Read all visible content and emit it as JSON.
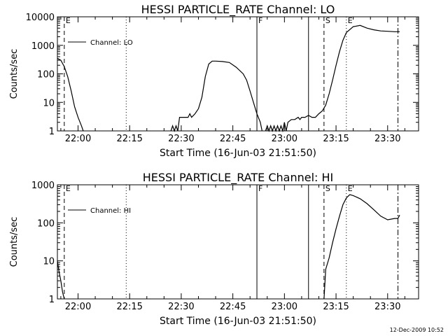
{
  "footer": {
    "stamp": "12-Dec-2009 10:52"
  },
  "chart_data": [
    {
      "type": "line",
      "title": "HESSI PARTICLE_RATE Channel: LO",
      "xlabel": "Start Time (16-Jun-03 21:51:50)",
      "ylabel": "Counts/sec",
      "yscale": "log",
      "xlim_minutes": [
        -6,
        99
      ],
      "ylim": [
        1,
        10000
      ],
      "x_ticks": [
        "22:00",
        "22:15",
        "22:30",
        "22:45",
        "23:00",
        "23:15",
        "23:30"
      ],
      "y_ticks": [
        "1",
        "10",
        "100",
        "1000",
        "10000"
      ],
      "legend": {
        "label": "Channel: LO",
        "position": "top-left"
      },
      "markers": [
        {
          "label": "E",
          "time_min": -4,
          "style": "dashed"
        },
        {
          "label": "",
          "time_min": 14,
          "style": "dotted"
        },
        {
          "label": "F",
          "time_min": 52,
          "style": "solid"
        },
        {
          "label": "",
          "time_min": 67,
          "style": "solid"
        },
        {
          "label": "S",
          "time_min": 71.5,
          "style": "dashed"
        },
        {
          "label": "E",
          "time_min": 78,
          "style": "dotted"
        },
        {
          "label": "",
          "time_min": 93,
          "style": "dashdot"
        }
      ],
      "series": [
        {
          "name": "Channel: LO",
          "segments": [
            [
              [
                -6,
                350
              ],
              [
                -5,
                300
              ],
              [
                -4,
                180
              ],
              [
                -3,
                80
              ],
              [
                -2,
                25
              ],
              [
                -1,
                7
              ],
              [
                0,
                3
              ],
              [
                1,
                1.5
              ],
              [
                1.5,
                1
              ]
            ],
            [
              [
                27,
                1
              ],
              [
                27.5,
                1.5
              ],
              [
                28,
                1
              ],
              [
                28.5,
                1.5
              ],
              [
                29,
                1
              ],
              [
                29.5,
                3
              ],
              [
                31,
                3
              ],
              [
                32,
                3
              ],
              [
                32.5,
                4
              ],
              [
                33,
                3
              ],
              [
                34,
                4
              ],
              [
                35,
                6
              ],
              [
                36,
                15
              ],
              [
                37,
                80
              ],
              [
                38,
                220
              ],
              [
                39,
                280
              ],
              [
                40,
                280
              ],
              [
                42,
                270
              ],
              [
                44,
                250
              ],
              [
                46,
                170
              ],
              [
                48,
                100
              ],
              [
                49,
                60
              ],
              [
                50,
                25
              ],
              [
                51,
                10
              ],
              [
                52,
                4
              ],
              [
                53,
                2
              ],
              [
                53.5,
                1
              ]
            ],
            [
              [
                54.5,
                1
              ],
              [
                55,
                1.5
              ],
              [
                55.5,
                1
              ],
              [
                56,
                1.5
              ],
              [
                56.5,
                1
              ],
              [
                57,
                1.5
              ],
              [
                57.5,
                1
              ],
              [
                58,
                1.5
              ],
              [
                58.5,
                1
              ],
              [
                59,
                1.5
              ],
              [
                59.5,
                1
              ],
              [
                60,
                2
              ],
              [
                60.5,
                1
              ],
              [
                61,
                2
              ],
              [
                62,
                2.5
              ],
              [
                63,
                2.5
              ],
              [
                64,
                3
              ],
              [
                64.5,
                2.5
              ],
              [
                65,
                3
              ],
              [
                66,
                3
              ],
              [
                67,
                3.5
              ],
              [
                68,
                3
              ],
              [
                69,
                3
              ],
              [
                70,
                4
              ],
              [
                71,
                5
              ],
              [
                72,
                8
              ],
              [
                73,
                20
              ],
              [
                74,
                60
              ],
              [
                75,
                200
              ],
              [
                76,
                600
              ],
              [
                77,
                1500
              ],
              [
                78,
                2800
              ],
              [
                80,
                4500
              ],
              [
                82,
                5000
              ],
              [
                84,
                4000
              ],
              [
                86,
                3500
              ],
              [
                88,
                3200
              ],
              [
                90,
                3100
              ],
              [
                92,
                3000
              ],
              [
                93,
                3000
              ],
              [
                93.5,
                3000
              ]
            ]
          ]
        }
      ]
    },
    {
      "type": "line",
      "title": "HESSI PARTICLE_RATE Channel: HI",
      "xlabel": "Start Time (16-Jun-03 21:51:50)",
      "ylabel": "Counts/sec",
      "yscale": "log",
      "xlim_minutes": [
        -6,
        99
      ],
      "ylim": [
        1,
        1000
      ],
      "x_ticks": [
        "22:00",
        "22:15",
        "22:30",
        "22:45",
        "23:00",
        "23:15",
        "23:30"
      ],
      "y_ticks": [
        "1",
        "10",
        "100",
        "1000"
      ],
      "legend": {
        "label": "Channel: HI",
        "position": "top-left"
      },
      "markers": [
        {
          "label": "E",
          "time_min": -4,
          "style": "dashed"
        },
        {
          "label": "",
          "time_min": 14,
          "style": "dotted"
        },
        {
          "label": "F",
          "time_min": 52,
          "style": "solid"
        },
        {
          "label": "",
          "time_min": 67,
          "style": "solid"
        },
        {
          "label": "S",
          "time_min": 71.5,
          "style": "dashed"
        },
        {
          "label": "E",
          "time_min": 78,
          "style": "dotted"
        },
        {
          "label": "",
          "time_min": 93,
          "style": "dashdot"
        }
      ],
      "series": [
        {
          "name": "Channel: HI",
          "segments": [
            [
              [
                -6,
                10
              ],
              [
                -5.5,
                5
              ],
              [
                -5,
                3
              ],
              [
                -4.5,
                1.5
              ],
              [
                -4,
                1
              ]
            ],
            [
              [
                71.5,
                1
              ],
              [
                72,
                6
              ],
              [
                73,
                12
              ],
              [
                74,
                30
              ],
              [
                75,
                70
              ],
              [
                76,
                150
              ],
              [
                77,
                300
              ],
              [
                78,
                450
              ],
              [
                79,
                550
              ],
              [
                80,
                520
              ],
              [
                82,
                430
              ],
              [
                84,
                320
              ],
              [
                86,
                220
              ],
              [
                88,
                150
              ],
              [
                90,
                120
              ],
              [
                92,
                130
              ],
              [
                93,
                130
              ],
              [
                93.5,
                160
              ]
            ]
          ]
        }
      ]
    }
  ]
}
